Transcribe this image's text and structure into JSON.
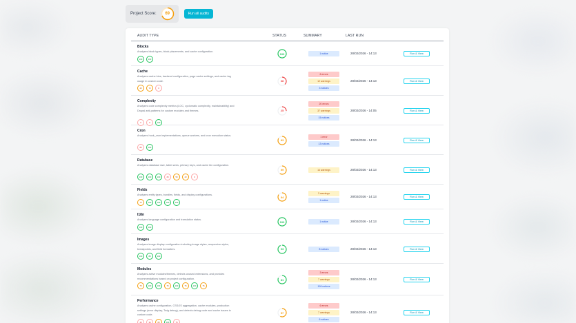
{
  "project": {
    "score_label": "Project Score:",
    "score": "69",
    "run_all_label": "Run all audits",
    "score_color": "#f59e0b"
  },
  "table": {
    "headers": {
      "audit_type": "AUDIT TYPE",
      "status": "STATUS",
      "summary": "SUMMARY",
      "last_run": "LAST RUN"
    },
    "action_label": "Run & View",
    "rows": [
      {
        "name": "Blocks",
        "desc": "Analyzes block types, block placements, and cache configuration.",
        "status": "100",
        "status_level": "good",
        "chips": [
          {
            "v": "100",
            "t": "good"
          },
          {
            "v": "100",
            "t": "good"
          }
        ],
        "badges": [
          {
            "label": "1 notice",
            "kind": "notice"
          }
        ],
        "last_run": "28/02/2026 - 14:13"
      },
      {
        "name": "Cache",
        "desc": "Analyzes cache bins, backend configuration, page cache settings, and cache tag usage in custom code.",
        "status": "38",
        "status_level": "bad",
        "chips": [
          {
            "v": "43",
            "t": "warn"
          },
          {
            "v": "72",
            "t": "warn"
          },
          {
            "v": "0",
            "t": "err"
          }
        ],
        "badges": [
          {
            "label": "6 errors",
            "kind": "error"
          },
          {
            "label": "12 warnings",
            "kind": "warning"
          },
          {
            "label": "3 notices",
            "kind": "notice"
          }
        ],
        "last_run": "28/02/2026 - 14:13"
      },
      {
        "name": "Complexity",
        "desc": "Analyzes code complexity metrics (LOC, cyclomatic complexity, maintainability) and Drupal anti-patterns for custom modules and themes.",
        "status": "25",
        "status_level": "bad",
        "chips": [
          {
            "v": "0",
            "t": "err"
          },
          {
            "v": "0",
            "t": "err"
          },
          {
            "v": "100",
            "t": "good"
          }
        ],
        "badges": [
          {
            "label": "20 errors",
            "kind": "error"
          },
          {
            "label": "37 warnings",
            "kind": "warning"
          },
          {
            "label": "15 notices",
            "kind": "notice"
          }
        ],
        "last_run": "28/02/2026 - 14:05"
      },
      {
        "name": "Cron",
        "desc": "Analyzes hook_cron implementations, queue workers, and cron execution status.",
        "status": "83",
        "status_level": "warn",
        "chips": [
          {
            "v": "80",
            "t": "err"
          },
          {
            "v": "100",
            "t": "good"
          }
        ],
        "badges": [
          {
            "label": "1 error",
            "kind": "error"
          },
          {
            "label": "13 notices",
            "kind": "notice"
          }
        ],
        "last_run": "28/02/2026 - 14:13"
      },
      {
        "name": "Database",
        "desc": "Analyzes database size, table sizes, primary keys, and cache bin configuration.",
        "status": "59",
        "status_level": "warn",
        "chips": [
          {
            "v": "100",
            "t": "good"
          },
          {
            "v": "100",
            "t": "good"
          },
          {
            "v": "100",
            "t": "good"
          },
          {
            "v": "25",
            "t": "err"
          },
          {
            "v": "50",
            "t": "warn"
          },
          {
            "v": "43",
            "t": "warn"
          },
          {
            "v": "0",
            "t": "err"
          }
        ],
        "badges": [
          {
            "label": "14 warnings",
            "kind": "warning"
          }
        ],
        "last_run": "28/02/2026 - 14:13"
      },
      {
        "name": "Fields",
        "desc": "Analyzes entity types, bundles, fields, and display configurations.",
        "status": "84",
        "status_level": "warn",
        "chips": [
          {
            "v": "75",
            "t": "warn"
          },
          {
            "v": "100",
            "t": "good"
          },
          {
            "v": "100",
            "t": "good"
          },
          {
            "v": "100",
            "t": "good"
          },
          {
            "v": "100",
            "t": "good"
          }
        ],
        "badges": [
          {
            "label": "3 warnings",
            "kind": "warning"
          },
          {
            "label": "1 notice",
            "kind": "notice"
          }
        ],
        "last_run": "28/02/2026 - 14:13"
      },
      {
        "name": "I18n",
        "desc": "Analyzes language configuration and translation status.",
        "status": "100",
        "status_level": "good",
        "chips": [
          {
            "v": "100",
            "t": "good"
          },
          {
            "v": "100",
            "t": "good"
          }
        ],
        "badges": [
          {
            "label": "1 notice",
            "kind": "notice"
          }
        ],
        "last_run": "28/02/2026 - 14:13"
      },
      {
        "name": "Images",
        "desc": "Analyzes image display configuration including image styles, responsive styles, breakpoints, and field formatters.",
        "status": "93",
        "status_level": "good",
        "chips": [
          {
            "v": "100",
            "t": "good"
          },
          {
            "v": "80",
            "t": "good"
          },
          {
            "v": "100",
            "t": "good"
          }
        ],
        "badges": [
          {
            "label": "8 notices",
            "kind": "notice"
          }
        ],
        "last_run": "28/02/2026 - 14:13"
      },
      {
        "name": "Modules",
        "desc": "Analyzes active modules/themes, detects unused extensions, and provides recommendations based on project configuration.",
        "status": "81",
        "status_level": "good",
        "chips": [
          {
            "v": "75",
            "t": "warn"
          },
          {
            "v": "100",
            "t": "good"
          },
          {
            "v": "100",
            "t": "good"
          },
          {
            "v": "75",
            "t": "warn"
          },
          {
            "v": "100",
            "t": "good"
          },
          {
            "v": "75",
            "t": "warn"
          },
          {
            "v": "100",
            "t": "good"
          },
          {
            "v": "75",
            "t": "warn"
          }
        ],
        "badges": [
          {
            "label": "3 errors",
            "kind": "error"
          },
          {
            "label": "7 warnings",
            "kind": "warning"
          },
          {
            "label": "199 notices",
            "kind": "notice"
          }
        ],
        "last_run": "28/02/2026 - 14:13"
      },
      {
        "name": "Performance",
        "desc": "Analyzes cache configuration, CSS/JS aggregation, cache modules, production settings (error display, Twig debug), and detects debug code and cache issues in custom code.",
        "status": "57",
        "status_level": "warn",
        "chips": [
          {
            "v": "40",
            "t": "err"
          },
          {
            "v": "34",
            "t": "err"
          },
          {
            "v": "83",
            "t": "warn"
          },
          {
            "v": "100",
            "t": "good"
          },
          {
            "v": "75",
            "t": "err"
          }
        ],
        "badges": [
          {
            "label": "6 errors",
            "kind": "error"
          },
          {
            "label": "7 warnings",
            "kind": "warning"
          },
          {
            "label": "6 notices",
            "kind": "notice"
          }
        ],
        "last_run": "28/02/2026 - 14:13"
      }
    ]
  },
  "colors": {
    "good": "#22c55e",
    "warn": "#f59e0b",
    "bad": "#ef4444",
    "accent": "#06b6d4"
  }
}
